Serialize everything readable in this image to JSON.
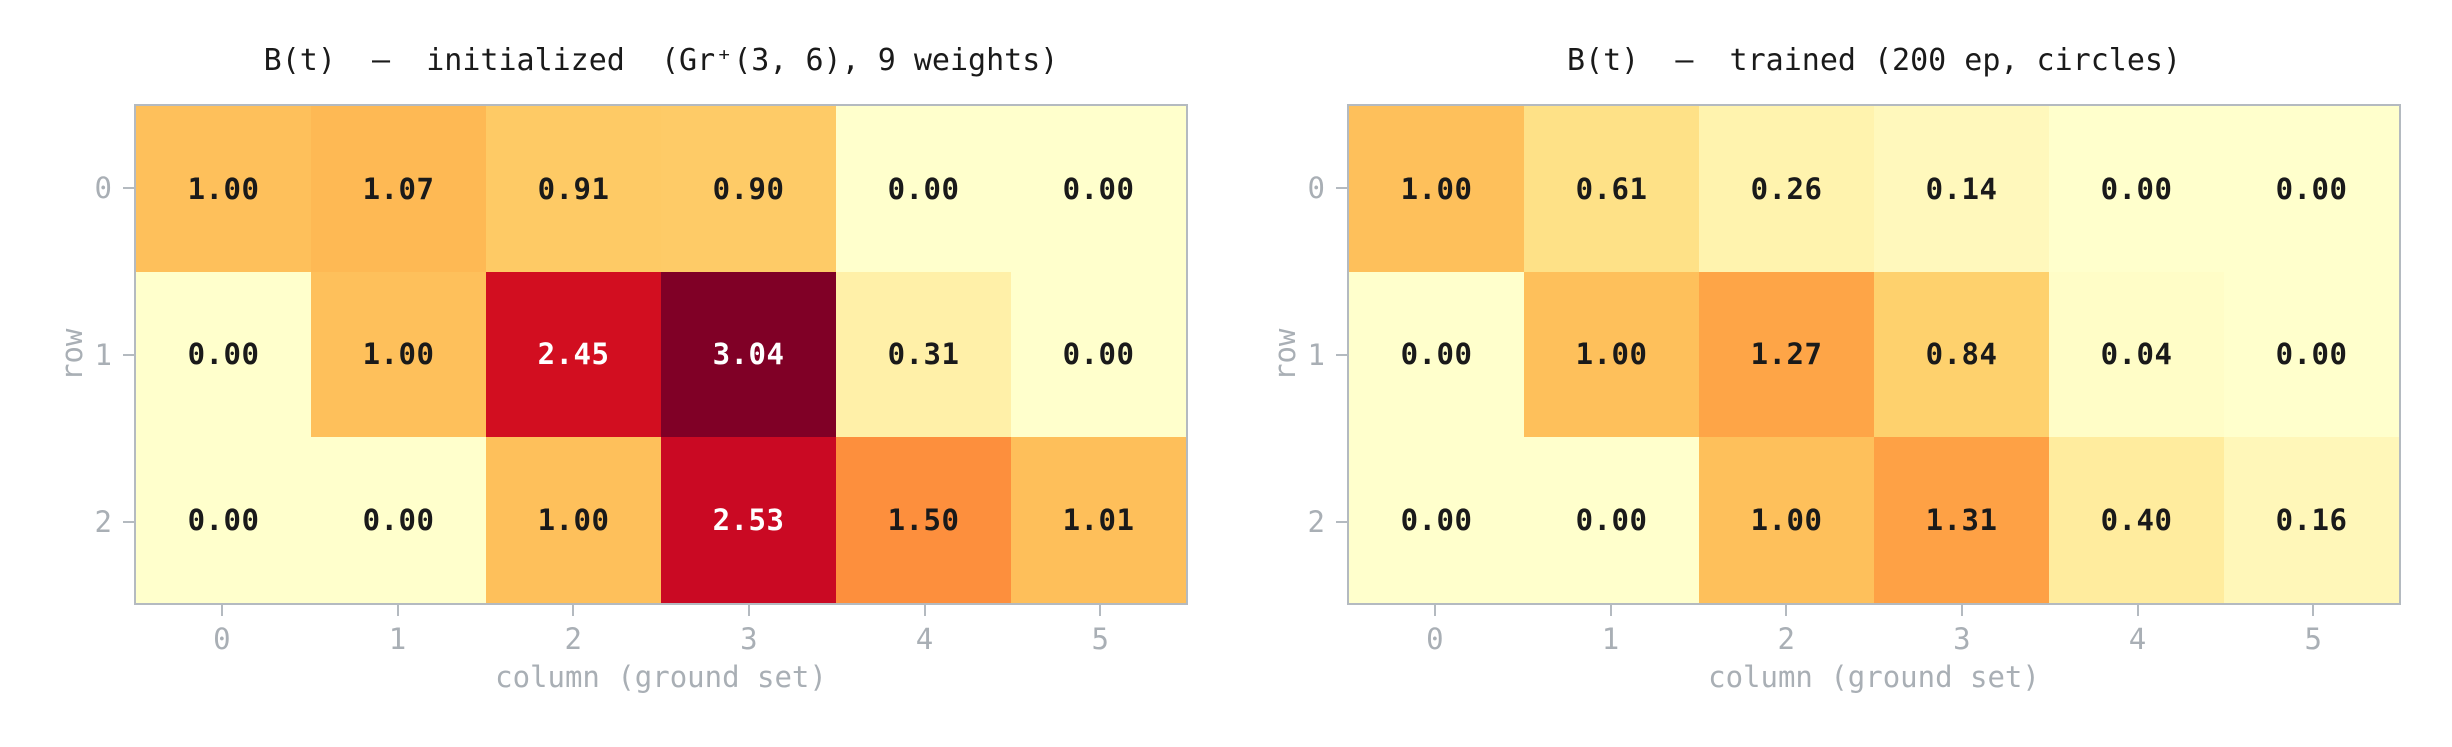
{
  "colors": {
    "background": "#ffffff",
    "spine": "#b4bac0",
    "tick_label": "#a9afb5",
    "title_text": "#1a1a1a",
    "cell_text_dark": "#1a1a1a",
    "cell_text_light": "#ffffff",
    "colormap_low": "#ffffcc",
    "colormap_high": "#800026"
  },
  "chart_data": [
    {
      "type": "heatmap",
      "title": "B(t)  —  initialized  (Gr⁺(3, 6), 9 weights)",
      "xlabel": "column (ground set)",
      "ylabel": "row",
      "x_ticks": [
        "0",
        "1",
        "2",
        "3",
        "4",
        "5"
      ],
      "y_ticks": [
        "0",
        "1",
        "2"
      ],
      "rows": 3,
      "cols": 6,
      "values": [
        [
          1.0,
          1.07,
          0.91,
          0.9,
          0.0,
          0.0
        ],
        [
          0.0,
          1.0,
          2.45,
          3.04,
          0.31,
          0.0
        ],
        [
          0.0,
          0.0,
          1.0,
          2.53,
          1.5,
          1.01
        ]
      ],
      "decimals": 2,
      "colormap": "YlOrRd",
      "vmin": 0,
      "vmax": 3.04,
      "grid": false,
      "legend": "none"
    },
    {
      "type": "heatmap",
      "title": "B(t)  –  trained (200 ep, circles)",
      "xlabel": "column (ground set)",
      "ylabel": "row",
      "x_ticks": [
        "0",
        "1",
        "2",
        "3",
        "4",
        "5"
      ],
      "y_ticks": [
        "0",
        "1",
        "2"
      ],
      "rows": 3,
      "cols": 6,
      "values": [
        [
          1.0,
          0.61,
          0.26,
          0.14,
          0.0,
          0.0
        ],
        [
          0.0,
          1.0,
          1.27,
          0.84,
          0.04,
          0.0
        ],
        [
          0.0,
          0.0,
          1.0,
          1.31,
          0.4,
          0.16
        ]
      ],
      "decimals": 2,
      "colormap": "YlOrRd",
      "vmin": 0,
      "vmax": 3.04,
      "grid": false,
      "legend": "none"
    }
  ]
}
